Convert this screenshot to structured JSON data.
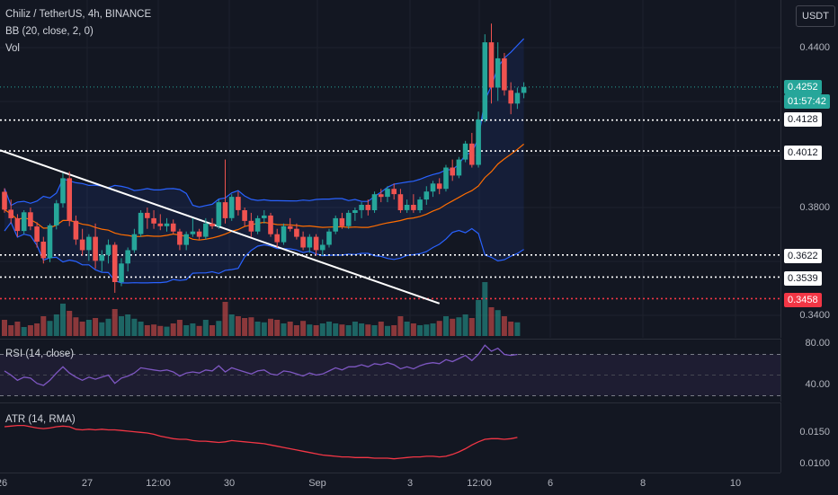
{
  "header": {
    "title": "Chiliz / TetherUS, 4h, BINANCE",
    "bb_legend": "BB (20, close, 2, 0)",
    "vol_legend": "Vol",
    "currency": "USDT"
  },
  "price_axis": {
    "labels": [
      "0.4400",
      "0.3800",
      "0.3400"
    ],
    "tags": [
      {
        "text": "0.4252",
        "bg": "#26a69a",
        "fg": "#ffffff"
      },
      {
        "text": "01:57:42",
        "bg": "#26a69a",
        "fg": "#ffffff"
      },
      {
        "text": "0.4128",
        "bg": "#ffffff",
        "fg": "#131722"
      },
      {
        "text": "0.4012",
        "bg": "#ffffff",
        "fg": "#131722"
      },
      {
        "text": "0.3622",
        "bg": "#ffffff",
        "fg": "#131722"
      },
      {
        "text": "0.3539",
        "bg": "#ffffff",
        "fg": "#131722"
      },
      {
        "text": "0.3458",
        "bg": "#f23645",
        "fg": "#ffffff"
      }
    ]
  },
  "rsi": {
    "legend": "RSI (14, close)",
    "labels": [
      "80.00",
      "40.00"
    ]
  },
  "atr": {
    "legend": "ATR (14, RMA)",
    "labels": [
      "0.0150",
      "0.0100"
    ]
  },
  "time_axis": {
    "labels": [
      "26",
      "27",
      "12:00",
      "30",
      "Sep",
      "3",
      "12:00",
      "6",
      "8",
      "10"
    ]
  },
  "colors": {
    "background": "#131722",
    "up": "#26a69a",
    "down": "#ef5350",
    "bb_band": "#2962ff",
    "bb_basis": "#ff6d00",
    "rsi": "#7e57c2",
    "atr": "#f23645",
    "trendline": "#ffffff"
  },
  "chart_data": {
    "type": "candlestick",
    "ohlc": [
      [
        0.3859,
        0.3872,
        0.378,
        0.3792
      ],
      [
        0.3792,
        0.383,
        0.374,
        0.376
      ],
      [
        0.376,
        0.3775,
        0.369,
        0.3712
      ],
      [
        0.3712,
        0.379,
        0.37,
        0.3782
      ],
      [
        0.3782,
        0.38,
        0.3715,
        0.3729
      ],
      [
        0.3729,
        0.3745,
        0.365,
        0.3672
      ],
      [
        0.3672,
        0.369,
        0.359,
        0.361
      ],
      [
        0.361,
        0.374,
        0.3595,
        0.3733
      ],
      [
        0.3733,
        0.3828,
        0.3718,
        0.3816
      ],
      [
        0.3816,
        0.393,
        0.38,
        0.391
      ],
      [
        0.391,
        0.3935,
        0.373,
        0.375
      ],
      [
        0.375,
        0.377,
        0.366,
        0.368
      ],
      [
        0.368,
        0.372,
        0.362,
        0.364
      ],
      [
        0.364,
        0.37,
        0.36,
        0.369
      ],
      [
        0.369,
        0.374,
        0.357,
        0.36
      ],
      [
        0.36,
        0.364,
        0.356,
        0.3622
      ],
      [
        0.3622,
        0.368,
        0.359,
        0.366
      ],
      [
        0.366,
        0.367,
        0.348,
        0.352
      ],
      [
        0.352,
        0.361,
        0.3505,
        0.359
      ],
      [
        0.359,
        0.365,
        0.356,
        0.364
      ],
      [
        0.364,
        0.372,
        0.363,
        0.37
      ],
      [
        0.37,
        0.379,
        0.369,
        0.378
      ],
      [
        0.378,
        0.38,
        0.372,
        0.376
      ],
      [
        0.376,
        0.379,
        0.372,
        0.374
      ],
      [
        0.374,
        0.3775,
        0.3715,
        0.373
      ],
      [
        0.373,
        0.376,
        0.371,
        0.374
      ],
      [
        0.374,
        0.3755,
        0.37,
        0.371
      ],
      [
        0.371,
        0.372,
        0.364,
        0.366
      ],
      [
        0.366,
        0.371,
        0.364,
        0.37
      ],
      [
        0.37,
        0.376,
        0.369,
        0.371
      ],
      [
        0.371,
        0.372,
        0.368,
        0.369
      ],
      [
        0.369,
        0.376,
        0.368,
        0.374
      ],
      [
        0.374,
        0.376,
        0.372,
        0.373
      ],
      [
        0.373,
        0.383,
        0.372,
        0.382
      ],
      [
        0.382,
        0.398,
        0.374,
        0.376
      ],
      [
        0.376,
        0.385,
        0.375,
        0.384
      ],
      [
        0.384,
        0.386,
        0.377,
        0.379
      ],
      [
        0.379,
        0.38,
        0.373,
        0.375
      ],
      [
        0.375,
        0.378,
        0.369,
        0.371
      ],
      [
        0.371,
        0.377,
        0.37,
        0.376
      ],
      [
        0.376,
        0.379,
        0.374,
        0.377
      ],
      [
        0.377,
        0.378,
        0.369,
        0.37
      ],
      [
        0.37,
        0.372,
        0.365,
        0.367
      ],
      [
        0.367,
        0.374,
        0.366,
        0.373
      ],
      [
        0.373,
        0.376,
        0.371,
        0.372
      ],
      [
        0.372,
        0.374,
        0.368,
        0.369
      ],
      [
        0.369,
        0.371,
        0.364,
        0.365
      ],
      [
        0.365,
        0.37,
        0.363,
        0.369
      ],
      [
        0.369,
        0.37,
        0.362,
        0.364
      ],
      [
        0.364,
        0.368,
        0.362,
        0.366
      ],
      [
        0.366,
        0.372,
        0.365,
        0.371
      ],
      [
        0.371,
        0.377,
        0.37,
        0.376
      ],
      [
        0.376,
        0.378,
        0.372,
        0.373
      ],
      [
        0.373,
        0.379,
        0.372,
        0.378
      ],
      [
        0.378,
        0.38,
        0.375,
        0.379
      ],
      [
        0.379,
        0.382,
        0.376,
        0.381
      ],
      [
        0.381,
        0.383,
        0.377,
        0.379
      ],
      [
        0.379,
        0.386,
        0.378,
        0.385
      ],
      [
        0.385,
        0.387,
        0.382,
        0.384
      ],
      [
        0.384,
        0.388,
        0.382,
        0.387
      ],
      [
        0.387,
        0.389,
        0.383,
        0.385
      ],
      [
        0.385,
        0.387,
        0.378,
        0.379
      ],
      [
        0.379,
        0.383,
        0.378,
        0.381
      ],
      [
        0.381,
        0.385,
        0.378,
        0.379
      ],
      [
        0.379,
        0.384,
        0.378,
        0.383
      ],
      [
        0.383,
        0.388,
        0.381,
        0.386
      ],
      [
        0.386,
        0.39,
        0.384,
        0.389
      ],
      [
        0.389,
        0.391,
        0.385,
        0.387
      ],
      [
        0.387,
        0.396,
        0.386,
        0.395
      ],
      [
        0.395,
        0.398,
        0.39,
        0.392
      ],
      [
        0.392,
        0.399,
        0.391,
        0.398
      ],
      [
        0.398,
        0.405,
        0.397,
        0.404
      ],
      [
        0.404,
        0.408,
        0.395,
        0.396
      ],
      [
        0.396,
        0.416,
        0.395,
        0.413
      ],
      [
        0.413,
        0.445,
        0.412,
        0.442
      ],
      [
        0.442,
        0.449,
        0.419,
        0.425
      ],
      [
        0.425,
        0.442,
        0.42,
        0.436
      ],
      [
        0.436,
        0.438,
        0.422,
        0.424
      ],
      [
        0.424,
        0.427,
        0.415,
        0.419
      ],
      [
        0.419,
        0.425,
        0.417,
        0.423
      ],
      [
        0.423,
        0.427,
        0.421,
        0.4252
      ]
    ],
    "volume": [
      0.45,
      0.3,
      0.4,
      0.25,
      0.3,
      0.35,
      0.55,
      0.42,
      0.6,
      0.9,
      0.7,
      0.52,
      0.4,
      0.45,
      0.5,
      0.38,
      0.48,
      0.75,
      0.55,
      0.6,
      0.48,
      0.4,
      0.3,
      0.32,
      0.28,
      0.26,
      0.35,
      0.45,
      0.3,
      0.35,
      0.28,
      0.45,
      0.3,
      0.42,
      0.95,
      0.6,
      0.55,
      0.5,
      0.52,
      0.4,
      0.38,
      0.48,
      0.45,
      0.35,
      0.4,
      0.3,
      0.42,
      0.32,
      0.3,
      0.35,
      0.4,
      0.35,
      0.32,
      0.3,
      0.4,
      0.35,
      0.32,
      0.3,
      0.4,
      0.28,
      0.3,
      0.55,
      0.4,
      0.35,
      0.3,
      0.32,
      0.35,
      0.42,
      0.55,
      0.48,
      0.52,
      0.6,
      0.5,
      1.0,
      1.5,
      0.8,
      0.72,
      0.55,
      0.4,
      0.38
    ],
    "rsi": [
      54,
      50,
      45,
      48,
      47,
      42,
      40,
      45,
      52,
      58,
      52,
      48,
      45,
      48,
      46,
      48,
      50,
      42,
      47,
      49,
      52,
      57,
      56,
      55,
      54,
      55,
      53,
      49,
      52,
      53,
      52,
      55,
      54,
      59,
      53,
      57,
      55,
      53,
      51,
      54,
      55,
      51,
      50,
      54,
      53,
      51,
      49,
      52,
      50,
      51,
      54,
      57,
      55,
      58,
      58,
      60,
      58,
      61,
      60,
      62,
      60,
      56,
      58,
      56,
      59,
      61,
      62,
      61,
      65,
      63,
      66,
      69,
      64,
      70,
      79,
      73,
      76,
      70,
      69,
      70
    ],
    "atr": [
      0.016,
      0.0161,
      0.0162,
      0.0162,
      0.016,
      0.0158,
      0.0157,
      0.0158,
      0.016,
      0.0161,
      0.016,
      0.0156,
      0.0155,
      0.0156,
      0.0155,
      0.0156,
      0.0155,
      0.0155,
      0.0154,
      0.0153,
      0.0152,
      0.0151,
      0.015,
      0.0148,
      0.0145,
      0.0143,
      0.0141,
      0.014,
      0.014,
      0.0138,
      0.0137,
      0.0137,
      0.0136,
      0.0135,
      0.0136,
      0.0138,
      0.0137,
      0.0136,
      0.0135,
      0.0134,
      0.0133,
      0.0131,
      0.0129,
      0.0127,
      0.0125,
      0.0123,
      0.0121,
      0.0119,
      0.0117,
      0.0115,
      0.0114,
      0.0113,
      0.0112,
      0.0112,
      0.0111,
      0.0111,
      0.0111,
      0.011,
      0.011,
      0.011,
      0.0109,
      0.011,
      0.0111,
      0.0112,
      0.0112,
      0.0113,
      0.0113,
      0.0112,
      0.0113,
      0.0116,
      0.012,
      0.0125,
      0.0131,
      0.0136,
      0.014,
      0.0141,
      0.0141,
      0.014,
      0.0141,
      0.0143
    ],
    "horizontal_levels": [
      0.4128,
      0.4012,
      0.3622,
      0.3539,
      0.3458
    ],
    "current_price_level": 0.4252,
    "trendline": [
      [
        0,
        0.4015
      ],
      [
        67,
        0.344
      ]
    ],
    "bb_visible": true
  }
}
